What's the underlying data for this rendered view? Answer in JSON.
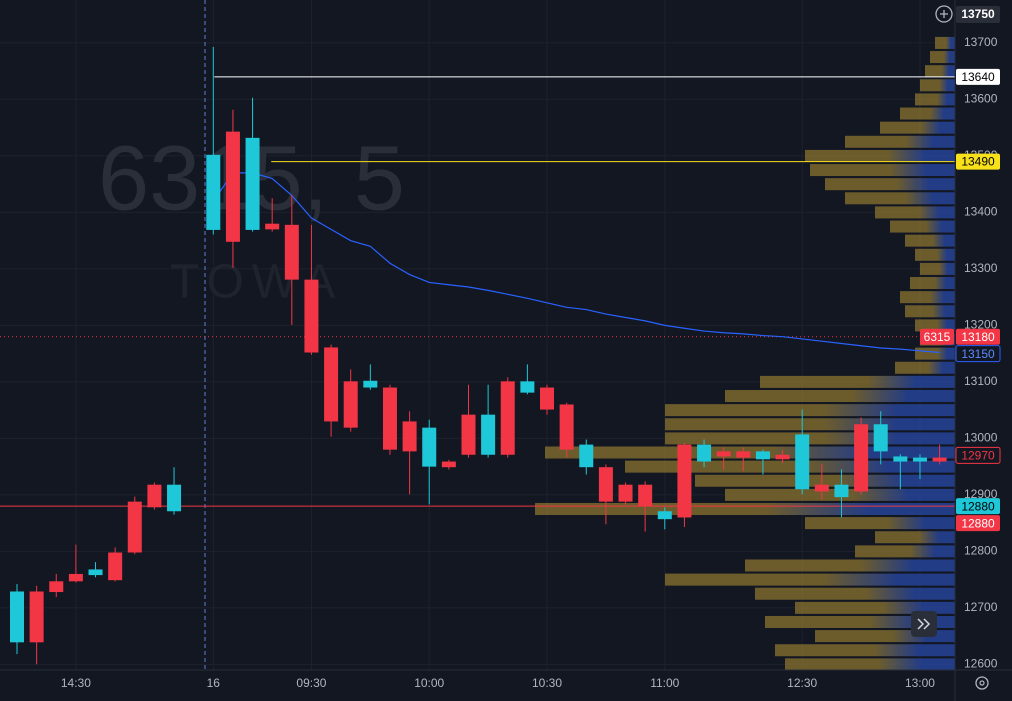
{
  "chart_data": {
    "type": "candlestick",
    "watermark": {
      "symbol": "6315, 5",
      "name": "TOWA"
    },
    "categories": [
      null,
      null,
      null,
      "14:30",
      null,
      null,
      null,
      null,
      null,
      null,
      "16",
      null,
      null,
      null,
      null,
      "09:30",
      null,
      null,
      null,
      null,
      null,
      "10:00",
      null,
      null,
      null,
      null,
      null,
      "10:30",
      null,
      null,
      null,
      null,
      null,
      "11:00",
      null,
      null,
      null,
      null,
      null,
      null,
      "12:30",
      null,
      null,
      null,
      null,
      null,
      "13:00",
      null
    ],
    "open": [
      12639,
      12729,
      12747,
      12760,
      12758,
      12798,
      12888,
      12918,
      12871,
      null,
      13369,
      13543,
      13369,
      13380,
      13378,
      13281,
      13161,
      13101,
      13090,
      13090,
      13030,
      12950,
      12959,
      13042,
      12971,
      13101,
      13081,
      13090,
      13060,
      12949,
      12949,
      12918,
      12918,
      12857,
      12989,
      12959,
      12977,
      12977,
      12963,
      12971,
      12910,
      12918,
      12896,
      13025,
      12977,
      12959,
      12959,
      12966
    ],
    "high": [
      12742,
      12739,
      12760,
      12812,
      12781,
      12807,
      12897,
      12922,
      12949,
      null,
      13693,
      13582,
      13603,
      13425,
      13431,
      13378,
      13166,
      13122,
      13131,
      13095,
      13048,
      13033,
      12962,
      13095,
      13095,
      13108,
      13131,
      13095,
      13063,
      12998,
      12954,
      12922,
      12924,
      12878,
      12992,
      12998,
      12984,
      12984,
      12980,
      12980,
      13051,
      12954,
      12945,
      13037,
      13048,
      12972,
      12972,
      12989
    ],
    "low": [
      12618,
      12600,
      12719,
      12745,
      12754,
      12747,
      12795,
      12874,
      12865,
      null,
      13361,
      13302,
      13366,
      13366,
      13201,
      13148,
      13003,
      13012,
      13086,
      12971,
      12901,
      12883,
      12945,
      12966,
      12966,
      12966,
      13078,
      13042,
      12966,
      12936,
      12848,
      12883,
      12835,
      12839,
      12843,
      12949,
      12945,
      12942,
      12936,
      12956,
      12901,
      12892,
      12860,
      12901,
      12954,
      12910,
      12928,
      12954
    ],
    "close": [
      12729,
      12639,
      12728,
      12747,
      12768,
      12749,
      12798,
      12878,
      12918,
      null,
      13502,
      13348,
      13532,
      13370,
      13281,
      13152,
      13030,
      13019,
      13102,
      12980,
      12977,
      13019,
      12949,
      12971,
      13042,
      12971,
      13101,
      13051,
      12980,
      12989,
      12888,
      12888,
      12880,
      12871,
      12860,
      12989,
      12968,
      12966,
      12977,
      12963,
      13007,
      12906,
      12918,
      12906,
      13025,
      12968,
      12966,
      12959
    ],
    "up_color": "#1ec8d8",
    "down_color": "#f23645",
    "vwap": {
      "color": "#2962ff",
      "values": [
        null,
        null,
        null,
        null,
        null,
        null,
        null,
        null,
        null,
        null,
        13420,
        13470,
        13470,
        13460,
        13430,
        13390,
        13370,
        13350,
        13340,
        13310,
        13290,
        13276,
        13272,
        13268,
        13262,
        13255,
        13248,
        13240,
        13232,
        13228,
        13220,
        13214,
        13208,
        13200,
        13195,
        13190,
        13187,
        13185,
        13182,
        13180,
        13176,
        13172,
        13168,
        13164,
        13160,
        13158,
        13155,
        13152
      ]
    },
    "volume_profile": {
      "color_from": "#8a7330",
      "color_to": "#2748a8",
      "prices": [
        12600,
        12625,
        12650,
        12675,
        12700,
        12725,
        12750,
        12775,
        12800,
        12825,
        12850,
        12875,
        12900,
        12925,
        12950,
        12975,
        13000,
        13025,
        13050,
        13075,
        13100,
        13125,
        13150,
        13175,
        13200,
        13225,
        13250,
        13275,
        13300,
        13325,
        13350,
        13375,
        13400,
        13425,
        13450,
        13475,
        13500,
        13525,
        13550,
        13575,
        13600,
        13625,
        13650,
        13675,
        13700
      ],
      "volumes": [
        170,
        180,
        140,
        190,
        160,
        200,
        290,
        210,
        100,
        80,
        150,
        420,
        230,
        260,
        330,
        410,
        290,
        290,
        290,
        230,
        195,
        60,
        40,
        35,
        40,
        50,
        55,
        45,
        35,
        40,
        50,
        65,
        80,
        110,
        130,
        145,
        150,
        110,
        75,
        55,
        40,
        35,
        30,
        25,
        20
      ]
    },
    "ylim": [
      12590,
      13776
    ],
    "yticks": [
      12600,
      12700,
      12800,
      12900,
      13000,
      13100,
      13200,
      13300,
      13400,
      13500,
      13600,
      13700
    ],
    "crosshair_price": 13750,
    "price_markers": [
      {
        "value": 13640,
        "color": "#ffffff",
        "text_color": "#000000",
        "line": "solid"
      },
      {
        "value": 13490,
        "color": "#f7e11b",
        "text_color": "#000000",
        "line": "solid"
      },
      {
        "value": 13180,
        "color": "#f23645",
        "text_color": "#ffffff",
        "line": "dotted",
        "symbol": "6315"
      },
      {
        "value": 13150,
        "color": "#131722",
        "border": "#2962ff",
        "text_color": "#5b8cff",
        "line": "none"
      },
      {
        "value": 12970,
        "color": "#131722",
        "border": "#f23645",
        "text_color": "#f23645",
        "line": "none"
      },
      {
        "value": 12880,
        "color": "#1ec8d8",
        "text_color": "#000000",
        "line": "none"
      },
      {
        "value": 12880,
        "color": "#f23645",
        "text_color": "#ffffff",
        "line": "solid"
      }
    ],
    "grid": true
  }
}
